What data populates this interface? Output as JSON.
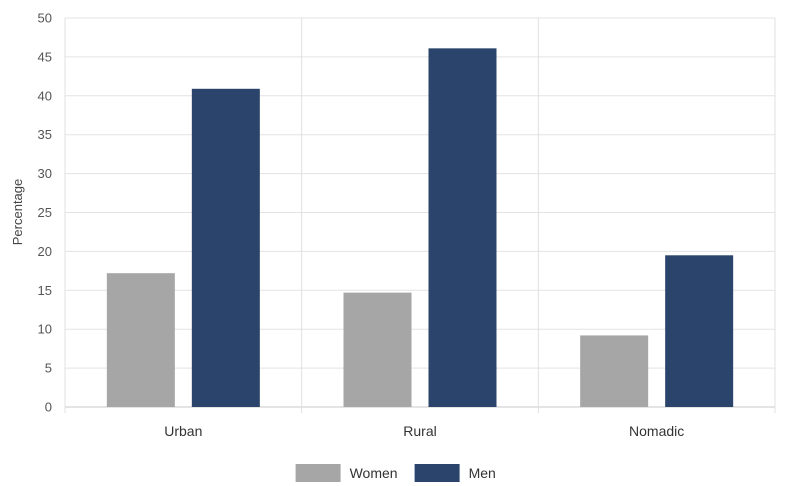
{
  "chart_data": {
    "type": "bar",
    "title": "",
    "xlabel": "",
    "ylabel": "Percentage",
    "ylim": [
      0,
      50
    ],
    "yticks": [
      0,
      5,
      10,
      15,
      20,
      25,
      30,
      35,
      40,
      45,
      50
    ],
    "categories": [
      "Urban",
      "Rural",
      "Nomadic"
    ],
    "series": [
      {
        "name": "Women",
        "color": "#a6a6a6",
        "values": [
          17.2,
          14.7,
          9.2
        ]
      },
      {
        "name": "Men",
        "color": "#2b446b",
        "values": [
          40.9,
          46.1,
          19.5
        ]
      }
    ],
    "grid": true,
    "legend": "bottom-center"
  }
}
